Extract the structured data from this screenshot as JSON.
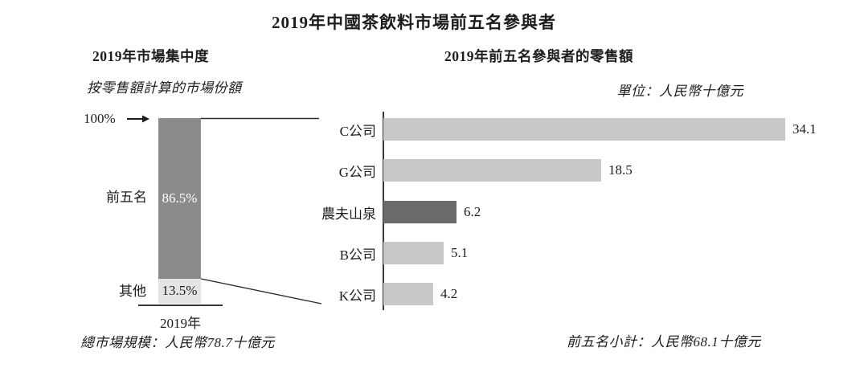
{
  "page_title": "2019年中國茶飲料市場前五名參與者",
  "chart_data": [
    {
      "type": "bar",
      "stacked": true,
      "orientation": "vertical",
      "title": "2019年市場集中度",
      "subtitle": "按零售額計算的市場份額",
      "axis_top_label": "100%",
      "categories": [
        "前五名",
        "其他"
      ],
      "values": [
        86.5,
        13.5
      ],
      "value_labels": [
        "86.5%",
        "13.5%"
      ],
      "bar_colors": [
        "#8d8a8b",
        "#e5e4e4"
      ],
      "x_tick_labels": [
        "2019年"
      ],
      "ylim": [
        0,
        100
      ],
      "legend": "none",
      "grid": false,
      "footnote": "總市場規模：人民幣78.7十億元"
    },
    {
      "type": "bar",
      "stacked": false,
      "orientation": "horizontal",
      "title": "2019年前五名參與者的零售額",
      "unit_label": "單位：人民幣十億元",
      "categories": [
        "C公司",
        "G公司",
        "農夫山泉",
        "B公司",
        "K公司"
      ],
      "values": [
        34.1,
        18.5,
        6.2,
        5.1,
        4.2
      ],
      "value_labels": [
        "34.1",
        "18.5",
        "6.2",
        "5.1",
        "4.2"
      ],
      "bar_colors": [
        "#c9c8c8",
        "#c9c8c8",
        "#6b6969",
        "#c9c8c8",
        "#c9c8c8"
      ],
      "highlighted_category": "農夫山泉",
      "xlim": [
        0,
        34.1
      ],
      "legend": "none",
      "grid": false,
      "footnote": "前五名小計：人民幣68.1十億元"
    }
  ],
  "colors": {
    "text": "#1f1c1d",
    "axis_line": "#3a3637",
    "connector_line": "#2e2a2b",
    "bar_light_gray": "#c9c8c8",
    "bar_dark_gray": "#6b6969",
    "segment_top_gray": "#8d8a8b",
    "segment_bottom_gray": "#e5e4e4"
  }
}
